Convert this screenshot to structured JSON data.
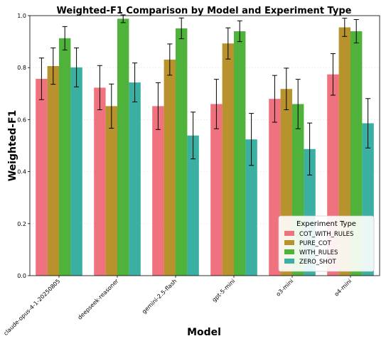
{
  "chart_data": {
    "type": "bar",
    "title": "Weighted-F1 Comparison by Model and Experiment Type",
    "xlabel": "Model",
    "ylabel": "Weighted-F1",
    "ylim": [
      0,
      1.0
    ],
    "yticks": [
      "0.0",
      "0.2",
      "0.4",
      "0.6",
      "0.8",
      "1.0"
    ],
    "grid": true,
    "legend_position": "bottom-right",
    "legend_title": "Experiment Type",
    "categories": [
      "claude-opus-4-1-20250805",
      "deepseek-reasoner",
      "gemini-2.5-flash",
      "gpt-5-mini",
      "o3-mini",
      "o4-mini"
    ],
    "series": [
      {
        "name": "COT_WITH_RULES",
        "color": "#f0727f",
        "values": [
          0.757,
          0.723,
          0.652,
          0.66,
          0.68,
          0.774
        ],
        "errors": [
          0.08,
          0.085,
          0.09,
          0.095,
          0.09,
          0.08
        ]
      },
      {
        "name": "PURE_COT",
        "color": "#b8922c",
        "values": [
          0.806,
          0.652,
          0.831,
          0.893,
          0.718,
          0.955
        ],
        "errors": [
          0.07,
          0.085,
          0.06,
          0.06,
          0.08,
          0.035
        ]
      },
      {
        "name": "WITH_RULES",
        "color": "#4fb23a",
        "values": [
          0.913,
          0.988,
          0.951,
          0.94,
          0.66,
          0.94
        ],
        "errors": [
          0.045,
          0.015,
          0.04,
          0.04,
          0.095,
          0.045
        ]
      },
      {
        "name": "ZERO_SHOT",
        "color": "#3aafa2",
        "values": [
          0.801,
          0.743,
          0.539,
          0.524,
          0.487,
          0.586
        ],
        "errors": [
          0.075,
          0.075,
          0.09,
          0.1,
          0.1,
          0.095
        ]
      }
    ]
  }
}
